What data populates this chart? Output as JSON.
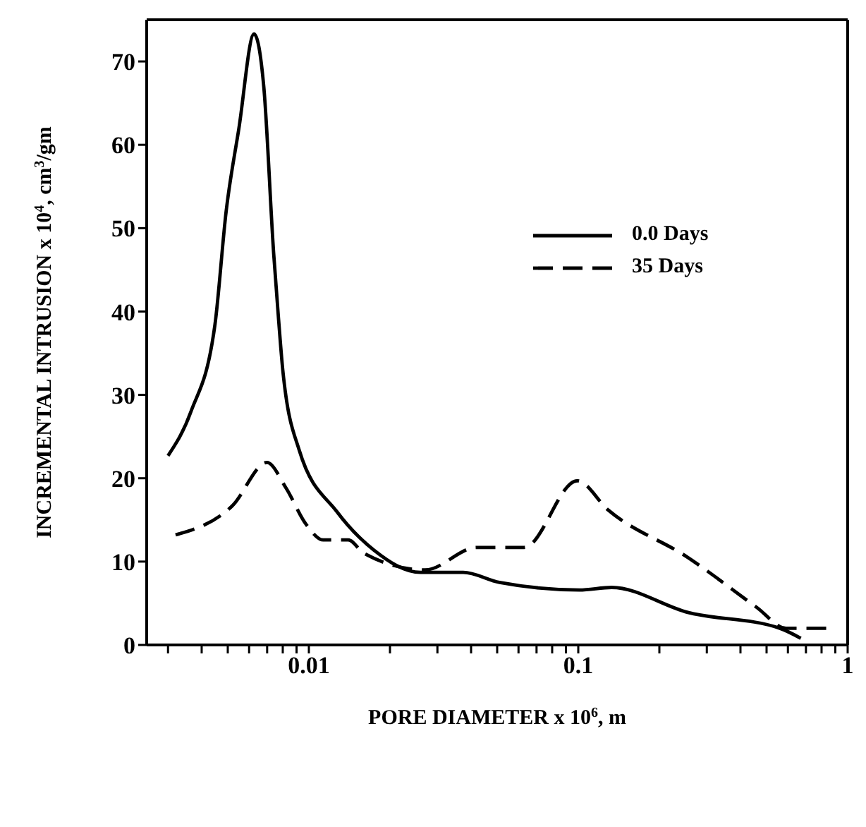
{
  "chart_data": {
    "type": "line",
    "xlabel": "PORE DIAMETER x 10$^{6}$, m",
    "ylabel": "INCREMENTAL INTRUSION x 10$^{4}$, cm$^{3}$/gm",
    "log": "x",
    "xlim": [
      0.0025,
      1
    ],
    "ylim": [
      0,
      75
    ],
    "xticks": [
      {
        "value": 0.003,
        "label": null
      },
      {
        "value": 0.004,
        "label": null
      },
      {
        "value": 0.005,
        "label": null
      },
      {
        "value": 0.006,
        "label": null
      },
      {
        "value": 0.007,
        "label": null
      },
      {
        "value": 0.008,
        "label": null
      },
      {
        "value": 0.009,
        "label": null
      },
      0.01,
      {
        "value": 0.02,
        "label": null
      },
      {
        "value": 0.03,
        "label": null
      },
      {
        "value": 0.04,
        "label": null
      },
      {
        "value": 0.05,
        "label": null
      },
      {
        "value": 0.06,
        "label": null
      },
      {
        "value": 0.07,
        "label": null
      },
      {
        "value": 0.08,
        "label": null
      },
      {
        "value": 0.09,
        "label": null
      },
      0.1,
      {
        "value": 0.2,
        "label": null
      },
      {
        "value": 0.3,
        "label": null
      },
      {
        "value": 0.4,
        "label": null
      },
      {
        "value": 0.5,
        "label": null
      },
      {
        "value": 0.6,
        "label": null
      },
      {
        "value": 0.7,
        "label": null
      },
      {
        "value": 0.8,
        "label": null
      },
      {
        "value": 0.9,
        "label": null
      },
      1
    ],
    "yticks": [
      0,
      10,
      20,
      30,
      40,
      50,
      60,
      70
    ],
    "grid": false,
    "legend": "top right",
    "marker": "none",
    "series": [
      {
        "name": "0.0 Days",
        "color": "#000000",
        "line_style": "solid",
        "x": [
          0.003,
          0.00365,
          0.00448,
          0.00493,
          0.0055,
          0.00626,
          0.0068,
          0.0074,
          0.0077,
          0.008,
          0.0092,
          0.0127,
          0.0174,
          0.026,
          0.0374,
          0.051,
          0.101,
          0.133,
          0.255,
          0.56,
          0.67
        ],
        "values": [
          22.7,
          28,
          38.4,
          52,
          62,
          73.3,
          67,
          47,
          39.5,
          33,
          23.4,
          16,
          11.4,
          8.7,
          8.7,
          7.5,
          6.6,
          6.9,
          3.9,
          2.0,
          0.8
        ]
      },
      {
        "name": "35 Days",
        "color": "#000000",
        "line_style": "dashed",
        "x": [
          0.0032,
          0.0052,
          0.007,
          0.0082,
          0.0098,
          0.0113,
          0.014,
          0.016,
          0.027,
          0.042,
          0.063,
          0.099,
          0.129,
          0.255,
          0.46,
          0.59,
          0.85
        ],
        "values": [
          13.2,
          16.7,
          21.9,
          18.9,
          14.4,
          12.6,
          12.6,
          11,
          9,
          11.7,
          11.7,
          19.7,
          16.2,
          10.5,
          4.5,
          2,
          2
        ]
      }
    ]
  }
}
